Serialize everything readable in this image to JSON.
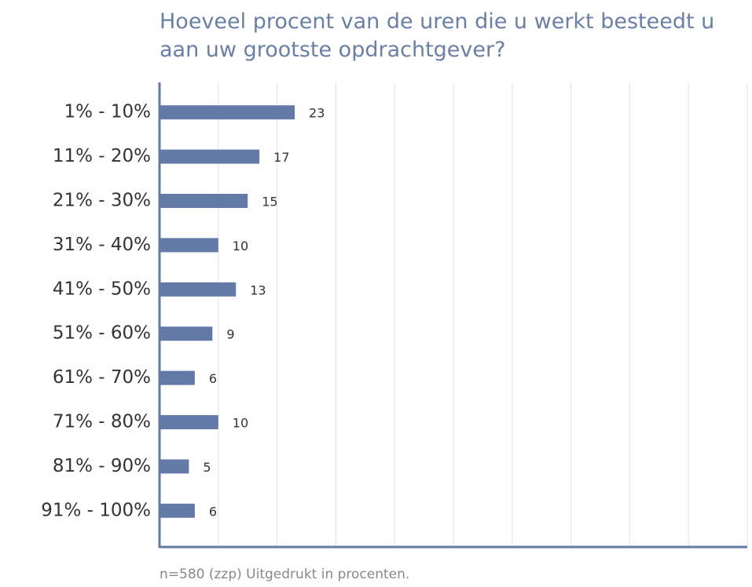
{
  "chart_data": {
    "type": "bar",
    "orientation": "horizontal",
    "title": "Hoeveel procent van de uren die u werkt besteedt u aan uw grootste opdrachtgever?",
    "note": "n=580 (zzp) Uitgedrukt in procenten.",
    "categories": [
      "1% - 10%",
      "11% - 20%",
      "21% - 30%",
      "31% - 40%",
      "41% - 50%",
      "51% - 60%",
      "61% - 70%",
      "71% - 80%",
      "81% - 90%",
      "91% - 100%"
    ],
    "values": [
      23,
      17,
      15,
      10,
      13,
      9,
      6,
      10,
      5,
      6
    ],
    "color": "#6379a8",
    "xlim": [
      0,
      100
    ],
    "xticks": [
      0,
      10,
      20,
      30,
      40,
      50,
      60,
      70,
      80,
      90,
      100
    ],
    "grid": true
  }
}
